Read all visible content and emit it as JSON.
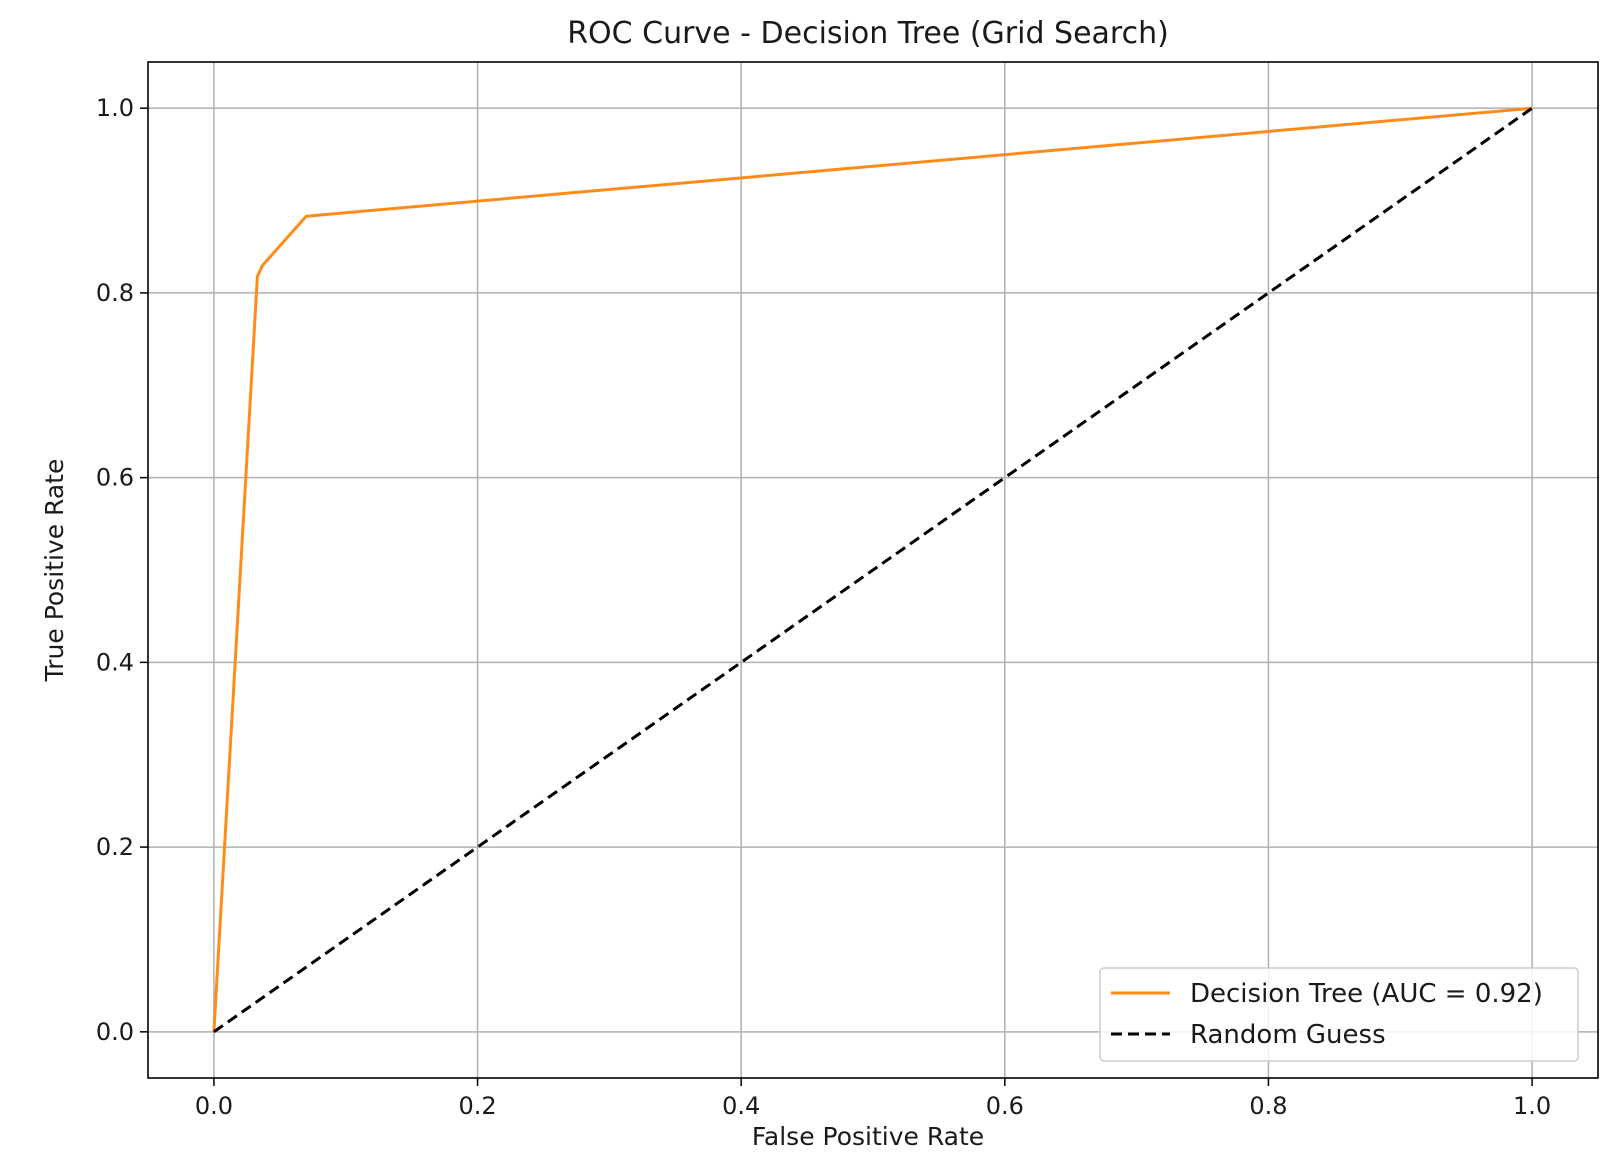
{
  "chart_data": {
    "type": "line",
    "title": "ROC Curve - Decision Tree (Grid Search)",
    "xlabel": "False Positive Rate",
    "ylabel": "True Positive Rate",
    "xlim": [
      -0.05,
      1.05
    ],
    "ylim": [
      -0.05,
      1.05
    ],
    "xticks": [
      0.0,
      0.2,
      0.4,
      0.6,
      0.8,
      1.0
    ],
    "yticks": [
      0.0,
      0.2,
      0.4,
      0.6,
      0.8,
      1.0
    ],
    "xtick_labels": [
      "0.0",
      "0.2",
      "0.4",
      "0.6",
      "0.8",
      "1.0"
    ],
    "ytick_labels": [
      "0.0",
      "0.2",
      "0.4",
      "0.6",
      "0.8",
      "1.0"
    ],
    "grid": true,
    "legend_position": "lower-right",
    "series": [
      {
        "name": "Decision Tree (AUC = 0.92)",
        "color": "#ff8c1a",
        "style": "solid",
        "x": [
          0.0,
          0.033,
          0.037,
          0.042,
          0.07,
          1.0
        ],
        "y": [
          0.0,
          0.818,
          0.83,
          0.838,
          0.883,
          1.0
        ]
      },
      {
        "name": "Random Guess",
        "color": "#000000",
        "style": "dashed",
        "x": [
          0.0,
          1.0
        ],
        "y": [
          0.0,
          1.0
        ]
      }
    ]
  }
}
